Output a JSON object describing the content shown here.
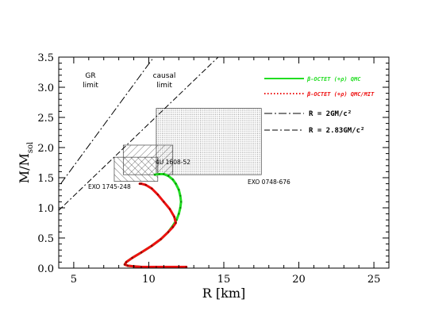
{
  "chart_data": {
    "type": "line",
    "xlabel": "R [km]",
    "ylabel_main": "M/M",
    "ylabel_sub": "sol",
    "xlim": [
      4,
      26
    ],
    "ylim": [
      0,
      3.5
    ],
    "xticks": [
      5,
      10,
      15,
      20,
      25
    ],
    "yticks": [
      0.0,
      0.5,
      1.0,
      1.5,
      2.0,
      2.5,
      3.0,
      3.5
    ],
    "xtick_labels": [
      "5",
      "10",
      "15",
      "20",
      "25"
    ],
    "ytick_labels": [
      "0.0",
      "0.5",
      "1.0",
      "1.5",
      "2.0",
      "2.5",
      "3.0",
      "3.5"
    ],
    "grid": false,
    "legend_position": "top-right",
    "annotations": {
      "gr_limit_line1": "GR",
      "gr_limit_line2": "limit",
      "causal_limit_line1": "causal",
      "causal_limit_line2": "limit"
    },
    "boxes": [
      {
        "name": "EXO 0748-676",
        "label": "EXO 0748-676",
        "x": [
          10.5,
          17.5
        ],
        "y": [
          1.55,
          2.65
        ],
        "pattern": "dots"
      },
      {
        "name": "4U 1608-52",
        "label": "4U 1608-52",
        "x": [
          8.3,
          11.6
        ],
        "y": [
          1.55,
          2.04
        ],
        "pattern": "hatch-down"
      },
      {
        "name": "EXO 1745-248",
        "label": "EXO 1745-248",
        "x": [
          7.7,
          10.6
        ],
        "y": [
          1.44,
          1.84
        ],
        "pattern": "hatch-up"
      }
    ],
    "limit_lines": [
      {
        "label": "R = 2GM/c²",
        "style": "dash-dot",
        "x": [
          3.0,
          11.2
        ]
      },
      {
        "label": "R = 2.83GM/c²",
        "style": "dash-dash-dot",
        "x": [
          4.0,
          15.5
        ]
      }
    ],
    "series": [
      {
        "name": "β-OCTET (+ρ) QMC",
        "color": "#22dd22",
        "style": "solid",
        "x": [
          12.3,
          10.5,
          9.5,
          9.0,
          8.6,
          8.4,
          8.5,
          8.9,
          9.5,
          10.2,
          10.8,
          11.3,
          11.6,
          11.85,
          12.0,
          12.1,
          12.15,
          12.1,
          12.0,
          11.8,
          11.6,
          11.3,
          11.0,
          10.7,
          10.4
        ],
        "y": [
          0.02,
          0.02,
          0.02,
          0.03,
          0.04,
          0.06,
          0.1,
          0.17,
          0.26,
          0.37,
          0.48,
          0.6,
          0.7,
          0.8,
          0.9,
          1.0,
          1.1,
          1.2,
          1.3,
          1.4,
          1.47,
          1.53,
          1.56,
          1.56,
          1.55
        ]
      },
      {
        "name": "β-OCTET (+ρ) QMC/MIT",
        "color": "#ee1111",
        "style": "dotted",
        "x": [
          12.5,
          10.5,
          9.5,
          9.0,
          8.6,
          8.4,
          8.5,
          8.9,
          9.5,
          10.2,
          10.8,
          11.3,
          11.6,
          11.8,
          11.7,
          11.4,
          11.0,
          10.6,
          10.2,
          9.8,
          9.5,
          9.4
        ],
        "y": [
          0.02,
          0.02,
          0.02,
          0.03,
          0.04,
          0.06,
          0.1,
          0.17,
          0.26,
          0.37,
          0.48,
          0.6,
          0.68,
          0.75,
          0.85,
          0.98,
          1.1,
          1.22,
          1.32,
          1.38,
          1.4,
          1.4
        ]
      }
    ]
  }
}
